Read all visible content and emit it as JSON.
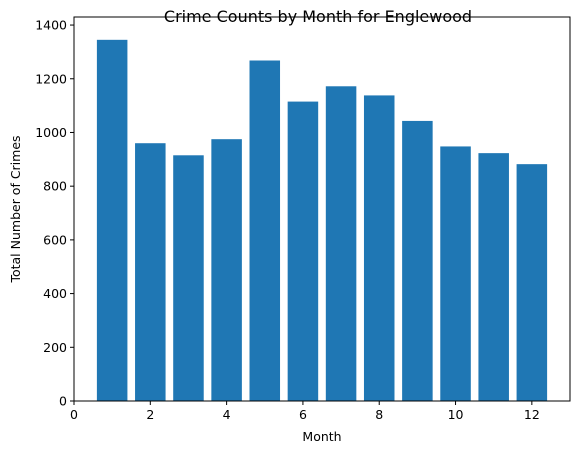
{
  "chart_data": {
    "type": "bar",
    "title": "Crime Counts by Month for Englewood",
    "xlabel": "Month",
    "ylabel": "Total Number of Crimes",
    "x": [
      1,
      2,
      3,
      4,
      5,
      6,
      7,
      8,
      9,
      10,
      11,
      12
    ],
    "values": [
      1345,
      960,
      915,
      975,
      1268,
      1115,
      1172,
      1138,
      1043,
      948,
      923,
      882
    ],
    "xlim": [
      0,
      13
    ],
    "ylim": [
      0,
      1430
    ],
    "xticks": [
      0,
      2,
      4,
      6,
      8,
      10,
      12
    ],
    "yticks": [
      0,
      200,
      400,
      600,
      800,
      1000,
      1200,
      1400
    ],
    "bar_color": "#1f77b4",
    "grid": false,
    "legend": "none"
  }
}
